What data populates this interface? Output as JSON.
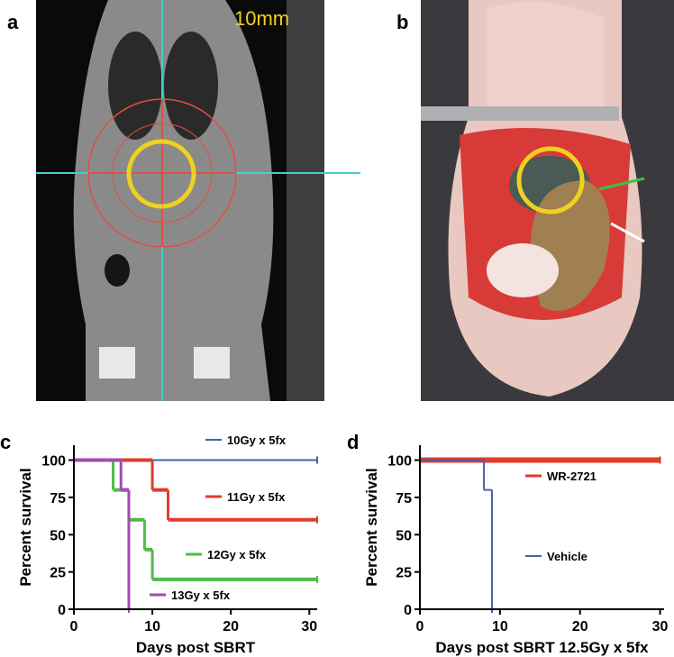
{
  "panels": {
    "a": {
      "label": "a",
      "scale": "10mm"
    },
    "b": {
      "label": "b"
    },
    "c": {
      "label": "c"
    },
    "d": {
      "label": "d"
    }
  },
  "chart_data": [
    {
      "type": "step",
      "xlabel": "Days post SBRT",
      "ylabel": "Percent survival",
      "xlim": [
        0,
        31
      ],
      "xticks": [
        0,
        10,
        20,
        30
      ],
      "ylim": [
        0,
        110
      ],
      "yticks": [
        0,
        25,
        50,
        75,
        100
      ],
      "series": [
        {
          "name": "10Gy x 5fx",
          "color": "#4a5db0",
          "x": [
            0,
            31
          ],
          "values": [
            100,
            100
          ]
        },
        {
          "name": "11Gy x 5fx",
          "color": "#e03c2c",
          "x": [
            0,
            10,
            12,
            31
          ],
          "values": [
            100,
            80,
            60,
            60
          ]
        },
        {
          "name": "12Gy x 5fx",
          "color": "#4cbd48",
          "x": [
            0,
            5,
            7,
            9,
            10,
            31
          ],
          "values": [
            100,
            80,
            60,
            40,
            20,
            20
          ]
        },
        {
          "name": "13Gy x 5fx",
          "color": "#a04cb0",
          "x": [
            0,
            6,
            7
          ],
          "values": [
            100,
            80,
            0
          ]
        }
      ]
    },
    {
      "type": "step",
      "xlabel": "Days post SBRT 12.5Gy x 5fx",
      "ylabel": "Percent survival",
      "xlim": [
        0,
        30.5
      ],
      "xticks": [
        0,
        10,
        20,
        30
      ],
      "ylim": [
        0,
        110
      ],
      "yticks": [
        0,
        25,
        50,
        75,
        100
      ],
      "series": [
        {
          "name": "WR-2721",
          "color": "#e03c2c",
          "x": [
            0,
            30
          ],
          "values": [
            100,
            100
          ]
        },
        {
          "name": "Vehicle",
          "color": "#4a5db0",
          "x": [
            0,
            8,
            9
          ],
          "values": [
            100,
            80,
            0
          ]
        }
      ]
    }
  ]
}
